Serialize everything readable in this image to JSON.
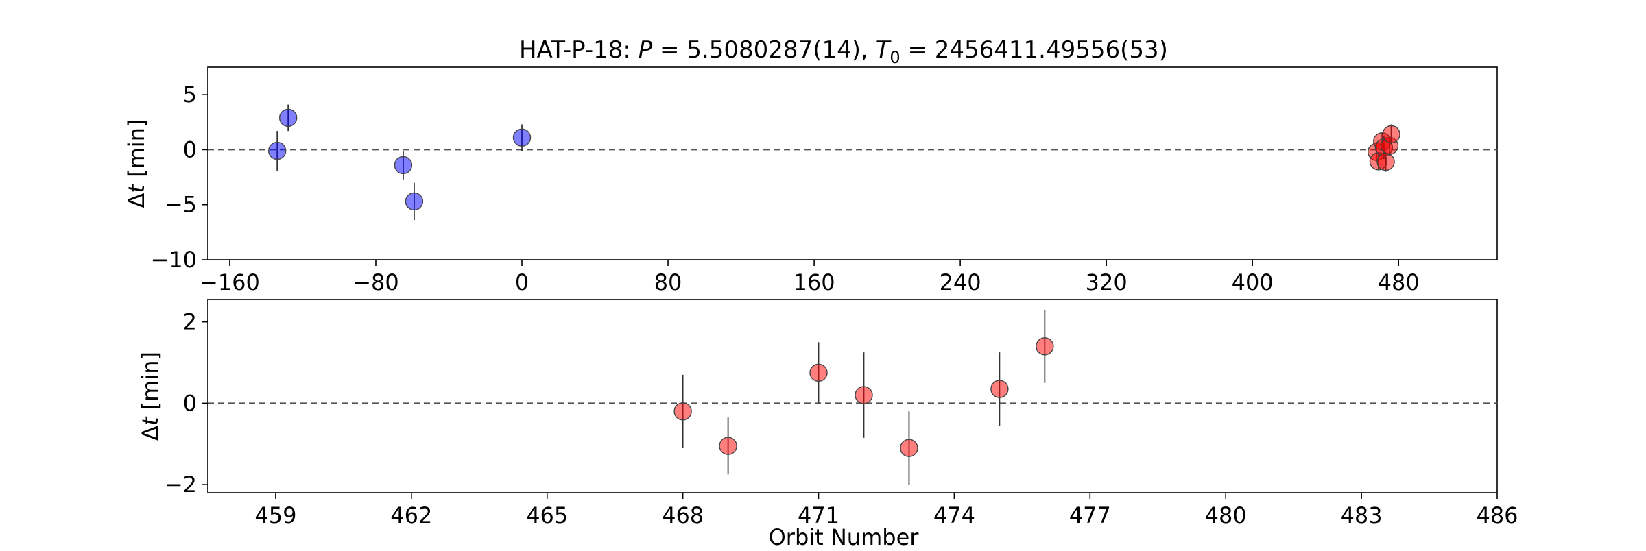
{
  "chart_data": [
    {
      "type": "scatter",
      "title_parts": {
        "prefix": "HAT-P-18: ",
        "p_sym": "P",
        "eq1": " = 5.5080287(14), ",
        "t_sym": "T",
        "t_sub": "0",
        "eq2": " = 2456411.49556(53)"
      },
      "ylabel": {
        "delta": "Δ",
        "var": "t",
        "unit": " [min]"
      },
      "xlim": [
        -172,
        534
      ],
      "ylim": [
        -10,
        7.5
      ],
      "xticks": [
        -160,
        -80,
        0,
        80,
        160,
        240,
        320,
        400,
        480
      ],
      "xtick_labels": [
        "−160",
        "−80",
        "0",
        "80",
        "160",
        "240",
        "320",
        "400",
        "480"
      ],
      "yticks": [
        -10,
        -5,
        0,
        5
      ],
      "ytick_labels": [
        "−10",
        "−5",
        "0",
        "5"
      ],
      "reference_line": 0,
      "series": [
        {
          "color": "#0000ff",
          "x": [
            -134,
            -128,
            -65,
            -59,
            0
          ],
          "y": [
            -0.1,
            2.9,
            -1.4,
            -4.7,
            1.1
          ],
          "err": [
            1.8,
            1.2,
            1.3,
            1.7,
            1.2
          ]
        },
        {
          "color": "#ff0000",
          "x": [
            468,
            469,
            471,
            472,
            473,
            475,
            476
          ],
          "y": [
            -0.2,
            -1.05,
            0.75,
            0.2,
            -1.1,
            0.35,
            1.4
          ],
          "err": [
            0.9,
            0.7,
            0.75,
            1.05,
            0.9,
            0.9,
            0.9
          ]
        }
      ]
    },
    {
      "type": "scatter",
      "xlabel": "Orbit Number",
      "ylabel": {
        "delta": "Δ",
        "var": "t",
        "unit": " [min]"
      },
      "xlim": [
        457.5,
        486
      ],
      "ylim": [
        -2.2,
        2.55
      ],
      "xticks": [
        459,
        462,
        465,
        468,
        471,
        474,
        477,
        480,
        483,
        486
      ],
      "xtick_labels": [
        "459",
        "462",
        "465",
        "468",
        "471",
        "474",
        "477",
        "480",
        "483",
        "486"
      ],
      "yticks": [
        -2,
        0,
        2
      ],
      "ytick_labels": [
        "−2",
        "0",
        "2"
      ],
      "reference_line": 0,
      "series": [
        {
          "color": "#ff0000",
          "x": [
            468,
            469,
            471,
            472,
            473,
            475,
            476
          ],
          "y": [
            -0.2,
            -1.05,
            0.75,
            0.2,
            -1.1,
            0.35,
            1.4
          ],
          "err": [
            0.9,
            0.7,
            0.75,
            1.05,
            0.9,
            0.9,
            0.9
          ]
        }
      ]
    }
  ]
}
